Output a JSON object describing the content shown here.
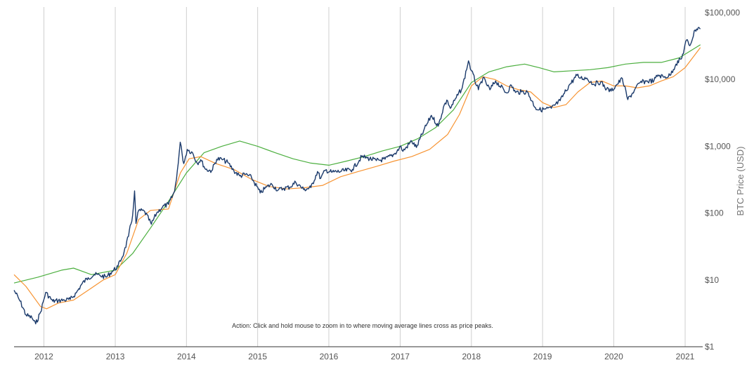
{
  "chart_data": {
    "type": "line",
    "ylabel": "BTC Price (USD)",
    "yscale": "log",
    "ylim": [
      1,
      100000
    ],
    "xlim": [
      "2011-08-01",
      "2021-04-01"
    ],
    "x_ticks": [
      "2012",
      "2013",
      "2014",
      "2015",
      "2016",
      "2017",
      "2018",
      "2019",
      "2020",
      "2021"
    ],
    "y_ticks": [
      "$1",
      "$10",
      "$100",
      "$1,000",
      "$10,000",
      "$100,000"
    ],
    "y_tick_values": [
      1,
      10,
      100,
      1000,
      10000,
      100000
    ],
    "grid": "vertical",
    "annotation": "Action: Click and hold mouse to zoom in to where moving average lines cross as price peaks.",
    "colors": {
      "price": "#1b3a6b",
      "orange_ma": "#f79433",
      "green_ma": "#4caf3f",
      "grid": "#cfcfcf"
    },
    "series": [
      {
        "key": "price",
        "x": [
          "2011-08-01",
          "2011-09-01",
          "2011-10-01",
          "2011-11-01",
          "2011-11-20",
          "2011-12-15",
          "2012-01-10",
          "2012-02-15",
          "2012-03-15",
          "2012-04-15",
          "2012-05-15",
          "2012-06-15",
          "2012-07-15",
          "2012-08-15",
          "2012-09-15",
          "2012-10-15",
          "2012-11-15",
          "2012-12-15",
          "2013-01-15",
          "2013-02-15",
          "2013-03-10",
          "2013-03-31",
          "2013-04-10",
          "2013-04-17",
          "2013-05-01",
          "2013-06-01",
          "2013-07-05",
          "2013-08-01",
          "2013-09-01",
          "2013-10-01",
          "2013-11-01",
          "2013-11-20",
          "2013-11-30",
          "2013-12-10",
          "2013-12-18",
          "2014-01-05",
          "2014-02-01",
          "2014-02-25",
          "2014-03-15",
          "2014-04-10",
          "2014-05-10",
          "2014-06-05",
          "2014-07-01",
          "2014-08-01",
          "2014-09-01",
          "2014-10-01",
          "2014-11-01",
          "2014-12-01",
          "2015-01-14",
          "2015-02-15",
          "2015-03-15",
          "2015-04-15",
          "2015-05-15",
          "2015-06-15",
          "2015-07-15",
          "2015-08-25",
          "2015-10-01",
          "2015-11-04",
          "2015-11-20",
          "2015-12-15",
          "2016-01-15",
          "2016-03-01",
          "2016-05-01",
          "2016-06-18",
          "2016-07-15",
          "2016-09-01",
          "2016-10-15",
          "2016-12-01",
          "2017-01-05",
          "2017-01-15",
          "2017-03-01",
          "2017-03-25",
          "2017-05-01",
          "2017-06-10",
          "2017-07-15",
          "2017-08-15",
          "2017-09-01",
          "2017-09-15",
          "2017-10-15",
          "2017-11-15",
          "2017-12-17",
          "2018-01-01",
          "2018-02-06",
          "2018-03-01",
          "2018-04-06",
          "2018-05-05",
          "2018-06-30",
          "2018-07-25",
          "2018-08-15",
          "2018-09-15",
          "2018-10-15",
          "2018-11-25",
          "2018-12-15",
          "2019-01-15",
          "2019-02-15",
          "2019-04-01",
          "2019-05-15",
          "2019-06-26",
          "2019-07-15",
          "2019-08-15",
          "2019-09-20",
          "2019-10-26",
          "2019-11-25",
          "2019-12-18",
          "2020-01-15",
          "2020-02-14",
          "2020-03-13",
          "2020-04-15",
          "2020-05-15",
          "2020-06-15",
          "2020-07-25",
          "2020-08-15",
          "2020-09-15",
          "2020-10-15",
          "2020-11-15",
          "2020-12-15",
          "2021-01-08",
          "2021-01-25",
          "2021-02-21",
          "2021-03-13",
          "2021-03-20"
        ],
        "y": [
          7,
          4.8,
          3,
          2.7,
          2.2,
          3.3,
          6.5,
          4.8,
          4.9,
          5,
          5.1,
          6.4,
          8.8,
          10.8,
          12,
          11.7,
          11,
          13.3,
          16,
          26,
          45,
          92,
          215,
          70,
          110,
          105,
          68,
          100,
          125,
          135,
          210,
          560,
          1150,
          760,
          550,
          900,
          800,
          560,
          630,
          450,
          430,
          640,
          640,
          570,
          430,
          360,
          380,
          340,
          200,
          245,
          270,
          220,
          235,
          245,
          290,
          225,
          240,
          420,
          330,
          440,
          410,
          420,
          450,
          700,
          670,
          610,
          640,
          760,
          1000,
          840,
          1200,
          960,
          1700,
          2900,
          2000,
          4200,
          4800,
          3700,
          5300,
          7500,
          19000,
          13500,
          7000,
          10500,
          7000,
          9500,
          6300,
          8200,
          6400,
          6500,
          6500,
          3800,
          3500,
          3600,
          3700,
          4800,
          8000,
          11500,
          10500,
          10500,
          8500,
          9200,
          7200,
          6700,
          8300,
          10300,
          5000,
          6800,
          9000,
          9400,
          9600,
          11700,
          10800,
          11500,
          17000,
          21000,
          39000,
          32000,
          55000,
          60000,
          57000
        ]
      },
      {
        "key": "orange_ma",
        "x": [
          "2011-08-01",
          "2011-10-01",
          "2011-12-15",
          "2012-01-15",
          "2012-03-15",
          "2012-06-01",
          "2012-08-15",
          "2012-11-01",
          "2013-01-01",
          "2013-03-01",
          "2013-05-01",
          "2013-07-01",
          "2013-10-01",
          "2013-12-01",
          "2014-01-15",
          "2014-03-15",
          "2014-06-01",
          "2014-09-01",
          "2014-12-01",
          "2015-03-01",
          "2015-06-01",
          "2015-09-01",
          "2015-12-01",
          "2016-03-01",
          "2016-06-01",
          "2016-09-01",
          "2016-12-01",
          "2017-03-01",
          "2017-06-01",
          "2017-09-01",
          "2017-11-01",
          "2018-01-01",
          "2018-03-01",
          "2018-05-01",
          "2018-07-01",
          "2018-09-01",
          "2018-11-01",
          "2019-01-01",
          "2019-03-01",
          "2019-05-01",
          "2019-07-01",
          "2019-09-01",
          "2019-11-01",
          "2020-01-01",
          "2020-03-01",
          "2020-05-01",
          "2020-07-01",
          "2020-09-01",
          "2020-11-01",
          "2021-01-01",
          "2021-03-20"
        ],
        "y": [
          12,
          8,
          4,
          3.7,
          4.5,
          5,
          7,
          10,
          12,
          25,
          80,
          110,
          115,
          400,
          650,
          700,
          550,
          450,
          320,
          250,
          230,
          240,
          260,
          350,
          420,
          500,
          600,
          700,
          900,
          1500,
          3000,
          8000,
          11000,
          10000,
          8000,
          7000,
          6500,
          4500,
          3800,
          4200,
          6500,
          9000,
          9500,
          8000,
          8000,
          7500,
          8000,
          9500,
          11000,
          15000,
          30000
        ]
      },
      {
        "key": "green_ma",
        "x": [
          "2011-08-01",
          "2011-12-01",
          "2012-04-01",
          "2012-06-01",
          "2012-09-01",
          "2013-01-01",
          "2013-04-01",
          "2013-07-01",
          "2013-10-01",
          "2014-01-01",
          "2014-04-01",
          "2014-07-01",
          "2014-10-01",
          "2015-01-01",
          "2015-04-01",
          "2015-07-01",
          "2015-10-01",
          "2016-01-01",
          "2016-04-01",
          "2016-07-01",
          "2016-10-01",
          "2017-01-01",
          "2017-04-01",
          "2017-07-01",
          "2017-10-01",
          "2018-01-01",
          "2018-04-01",
          "2018-07-01",
          "2018-10-01",
          "2018-12-15",
          "2019-03-01",
          "2019-06-01",
          "2019-09-01",
          "2019-12-01",
          "2020-03-01",
          "2020-06-01",
          "2020-09-01",
          "2020-12-01",
          "2021-03-20"
        ],
        "y": [
          9,
          11,
          14,
          15,
          12,
          14,
          25,
          60,
          150,
          400,
          800,
          1000,
          1200,
          1000,
          800,
          650,
          560,
          520,
          600,
          700,
          850,
          1000,
          1300,
          1900,
          3500,
          9000,
          13000,
          15500,
          17000,
          15000,
          13000,
          13500,
          14000,
          15000,
          17000,
          18000,
          18000,
          21000,
          33000
        ]
      }
    ]
  }
}
